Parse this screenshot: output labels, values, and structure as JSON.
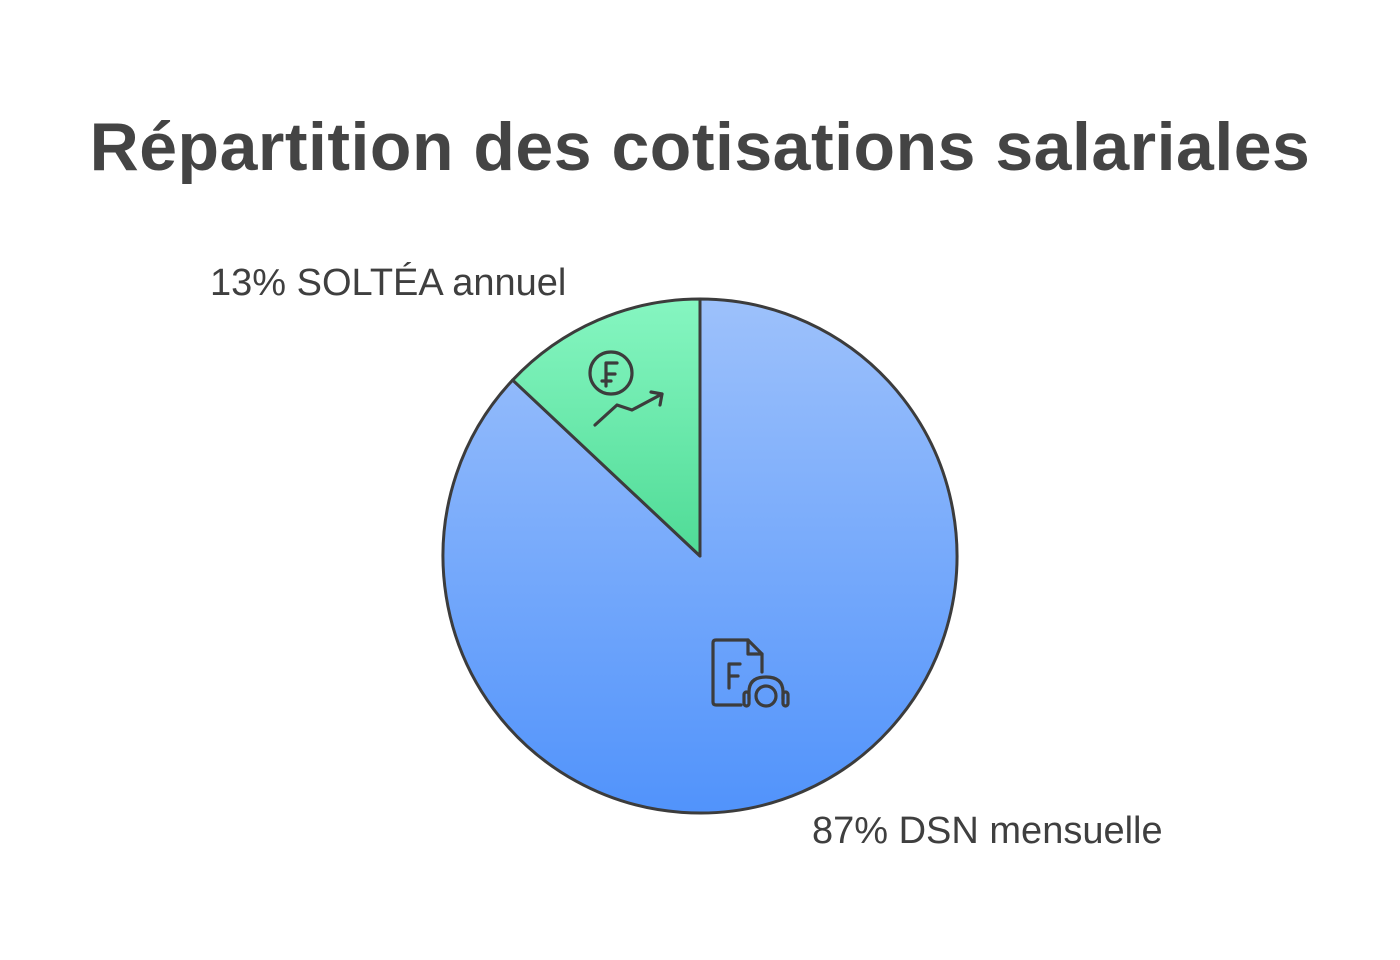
{
  "title": "Répartition des cotisations salariales",
  "chart_data": {
    "type": "pie",
    "title": "Répartition des cotisations salariales",
    "slices": [
      {
        "label": "87% DSN mensuelle",
        "percent": 87,
        "name": "DSN mensuelle",
        "color_top": "#9dc1fb",
        "color_bottom": "#5193fb",
        "icon": "franc-document-support-icon"
      },
      {
        "label": "13% SOLTÉA annuel",
        "percent": 13,
        "name": "SOLTÉA annuel",
        "color_top": "#86f6c1",
        "color_bottom": "#4fdb96",
        "icon": "franc-growth-icon"
      }
    ],
    "start_angle_deg": 0,
    "direction": "clockwise",
    "outline_color": "#3c3c3c"
  }
}
